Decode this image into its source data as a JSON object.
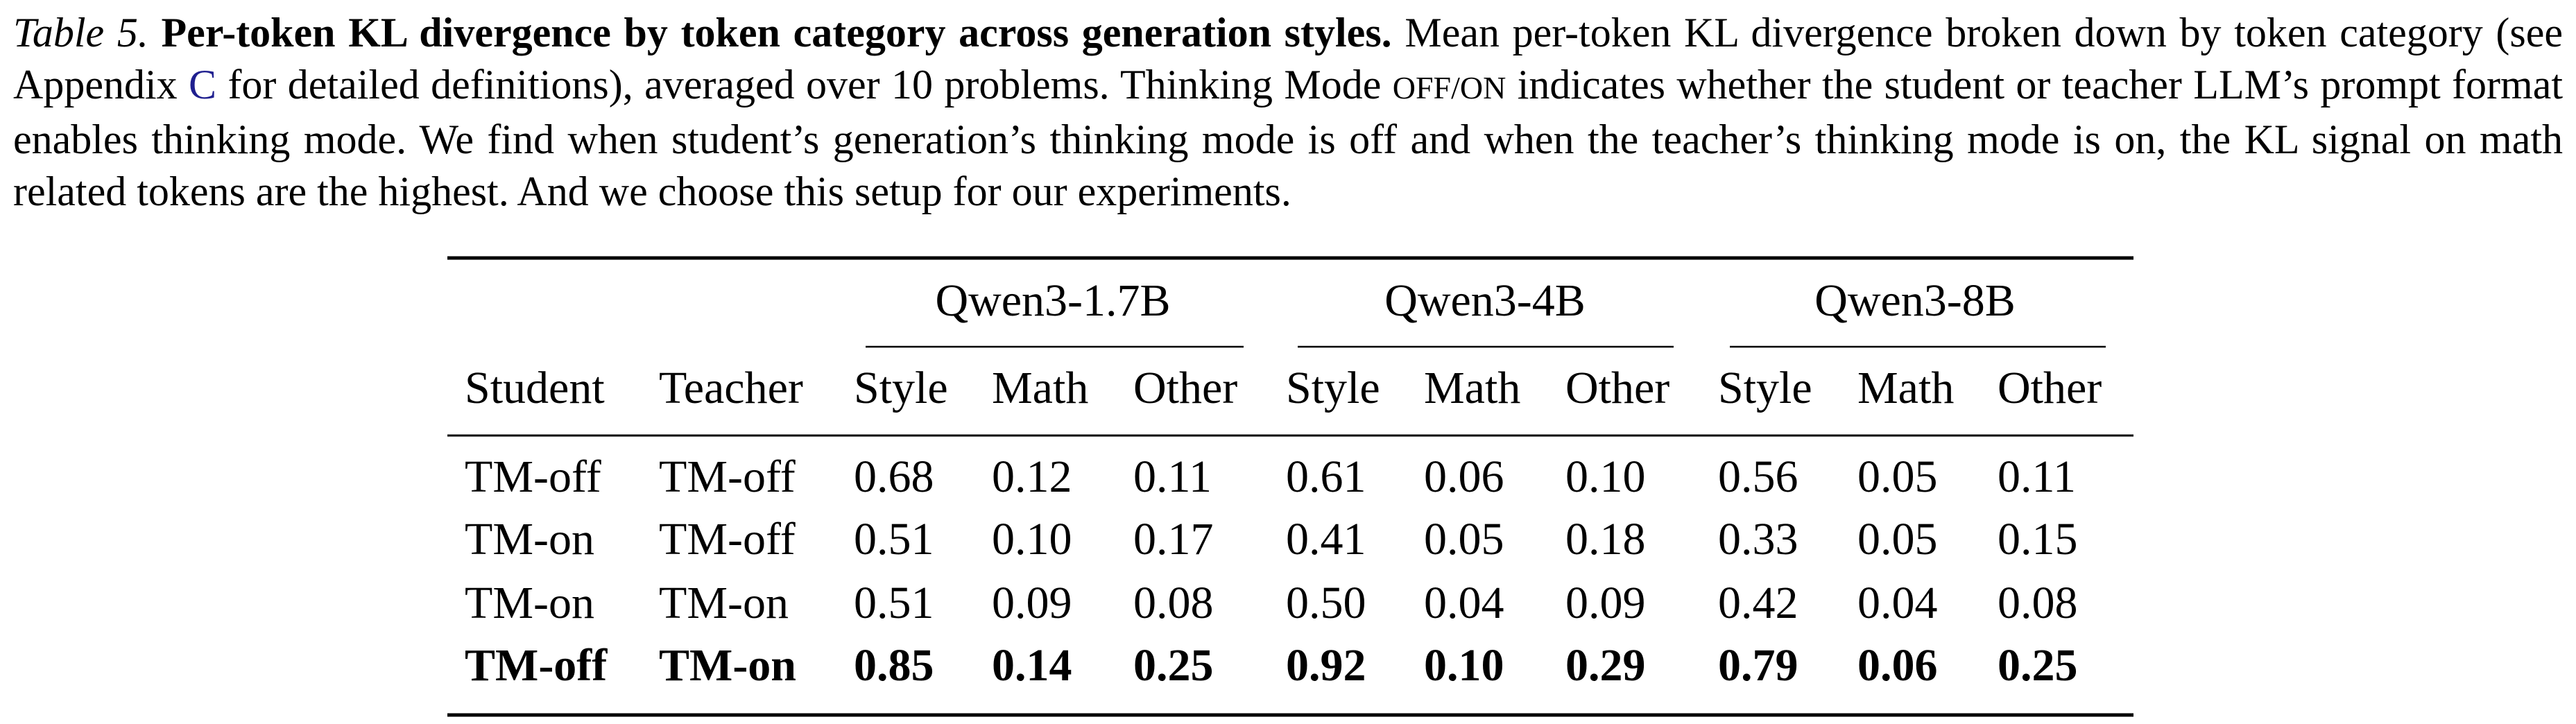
{
  "caption": {
    "label": "Table 5.",
    "title": "Per-token KL divergence by token category across generation styles.",
    "text1": "Mean per-token KL divergence broken down by token category (see Appendix ",
    "link": "C",
    "text2": " for detailed definitions), averaged over 10 problems. Thinking Mode ",
    "smallcaps": "OFF/ON",
    "text3": " indicates whether the student or teacher LLM’s prompt format enables thinking mode. We find when student’s generation’s thinking mode is off and when the teacher’s thinking mode is on, the KL signal on math related tokens are the highest. And we choose this setup for our experiments."
  },
  "table": {
    "groups": [
      "Qwen3-1.7B",
      "Qwen3-4B",
      "Qwen3-8B"
    ],
    "columns": [
      "Student",
      "Teacher",
      "Style",
      "Math",
      "Other",
      "Style",
      "Math",
      "Other",
      "Style",
      "Math",
      "Other"
    ],
    "rows": [
      {
        "cells": [
          "TM-off",
          "TM-off",
          "0.68",
          "0.12",
          "0.11",
          "0.61",
          "0.06",
          "0.10",
          "0.56",
          "0.05",
          "0.11"
        ],
        "bold": false
      },
      {
        "cells": [
          "TM-on",
          "TM-off",
          "0.51",
          "0.10",
          "0.17",
          "0.41",
          "0.05",
          "0.18",
          "0.33",
          "0.05",
          "0.15"
        ],
        "bold": false
      },
      {
        "cells": [
          "TM-on",
          "TM-on",
          "0.51",
          "0.09",
          "0.08",
          "0.50",
          "0.04",
          "0.09",
          "0.42",
          "0.04",
          "0.08"
        ],
        "bold": false
      },
      {
        "cells": [
          "TM-off",
          "TM-on",
          "0.85",
          "0.14",
          "0.25",
          "0.92",
          "0.10",
          "0.29",
          "0.79",
          "0.06",
          "0.25"
        ],
        "bold": true
      }
    ]
  }
}
